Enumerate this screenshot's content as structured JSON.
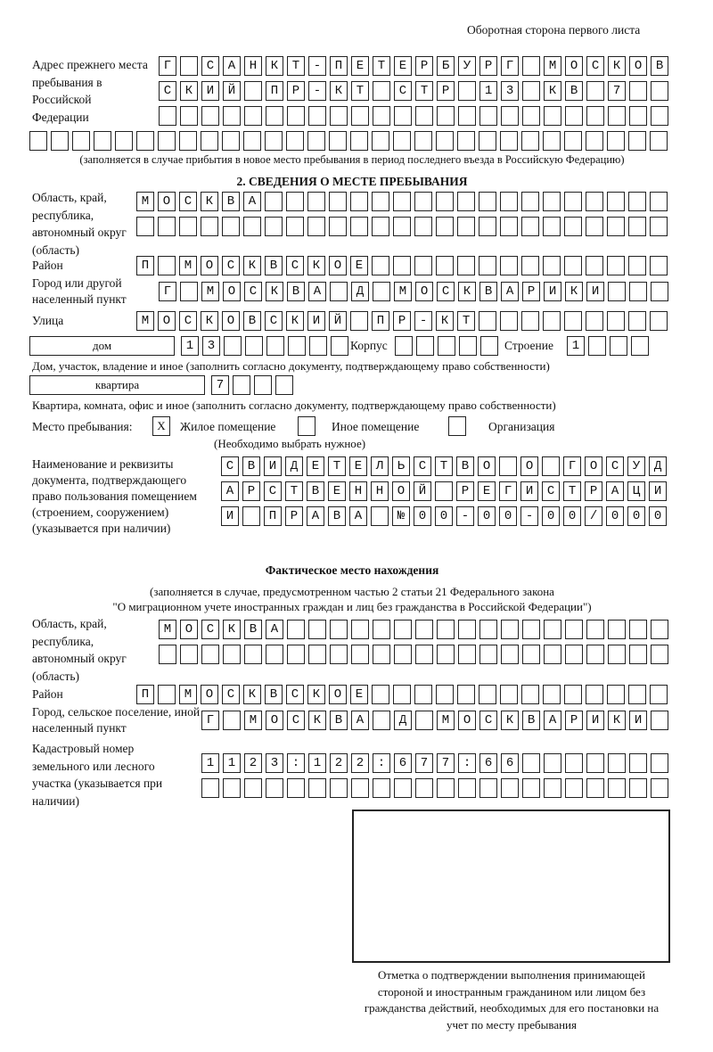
{
  "header_note": "Оборотная сторона первого листа",
  "previous_address": {
    "label": "Адрес прежнего места пребывания в Российской Федерации",
    "rows": [
      "Г САНКТ-ПЕТЕРБУРГ МОСКОВ",
      "СКИЙ ПР-КТ СТР 13 КВ 7",
      "",
      ""
    ],
    "note": "(заполняется в случае прибытия в новое место пребывания в период последнего въезда в Российскую Федерацию)"
  },
  "section2": {
    "title": "2. СВЕДЕНИЯ О МЕСТЕ ПРЕБЫВАНИЯ",
    "region_label": "Область, край, республика, автономный округ (область)",
    "region_rows": [
      "МОСКВА",
      ""
    ],
    "district_label": "Район",
    "district": "П МОСКВСКОЕ",
    "city_label": "Город или другой населенный пункт",
    "city": "Г МОСКВА Д МОСКВАРИКИ",
    "street_label": "Улица",
    "street": "МОСКОВСКИЙ ПР-КТ",
    "house_type": "дом",
    "house_number": "13",
    "korpus_label": "Корпус",
    "korpus": "",
    "building_label": "Строение",
    "building": "1",
    "house_caption": "Дом, участок, владение и иное (заполнить согласно документу, подтверждающему право собственности)",
    "flat_type": "квартира",
    "flat_number": "7",
    "flat_caption": "Квартира, комната, офис и иное (заполнить согласно документу, подтверждающему право собственности)",
    "stay_place_label": "Место пребывания:",
    "stay_options": [
      {
        "label": "Жилое помещение",
        "mark": "X"
      },
      {
        "label": "Иное помещение",
        "mark": ""
      },
      {
        "label": "Организация",
        "mark": ""
      }
    ],
    "stay_hint": "(Необходимо выбрать нужное)",
    "document_label": "Наименование и реквизиты документа, подтверждающего право пользования помещением (строением, сооружением) (указывается при наличии)",
    "document_rows": [
      "СВИДЕТЕЛЬСТВО О ГОСУД",
      "АРСТВЕННОЙ РЕГИСТРАЦИ",
      "И ПРАВА №00-00-00/000"
    ]
  },
  "actual_location": {
    "title": "Фактическое место нахождения",
    "subtitle_1": "(заполняется в случае, предусмотренном частью 2 статьи 21 Федерального закона",
    "subtitle_2": "\"О миграционном учете иностранных граждан и лиц без гражданства в Российской Федерации\")",
    "region_label": "Область, край, республика, автономный округ (область)",
    "region_rows": [
      "МОСКВА",
      ""
    ],
    "district_label": "Район",
    "district": "П МОСКВСКОЕ",
    "city_label": "Город, сельское поселение, иной населенный пункт",
    "city": "Г МОСКВА Д МОСКВАРИКИ",
    "cadastral_label": "Кадастровый номер земельного или лесного участка (указывается при наличии)",
    "cadastral_rows": [
      "1123:122:677:66",
      ""
    ]
  },
  "confirmation_caption": "Отметка о подтверждении выполнения принимающей стороной и иностранным гражданином или лицом без гражданства действий, необходимых для его постановки на учет по месту пребывания"
}
